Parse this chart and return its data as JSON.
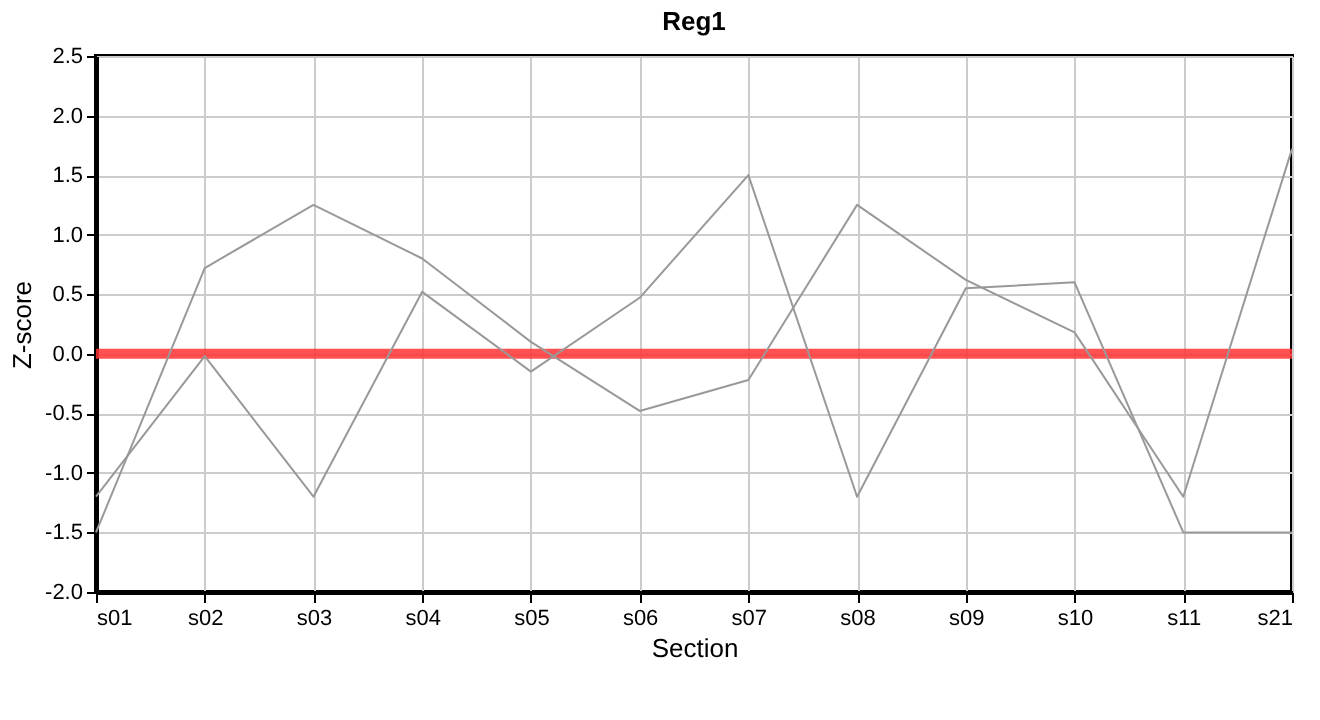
{
  "chart_data": {
    "type": "line",
    "title": "Reg1",
    "xlabel": "Section",
    "ylabel": "Z-score",
    "categories": [
      "s01",
      "s02",
      "s03",
      "s04",
      "s05",
      "s06",
      "s07",
      "s08",
      "s09",
      "s10",
      "s11",
      "s21"
    ],
    "series": [
      {
        "color": "#999999",
        "values": [
          -1.5,
          0.72,
          1.25,
          0.8,
          0.1,
          -0.48,
          -0.22,
          1.25,
          0.62,
          0.18,
          -1.2,
          1.72
        ]
      },
      {
        "color": "#999999",
        "values": [
          -1.2,
          -0.02,
          -1.2,
          0.52,
          -0.15,
          0.47,
          1.5,
          -1.2,
          0.55,
          0.6,
          -1.5,
          -1.5
        ]
      }
    ],
    "ylim": [
      -2,
      2.5
    ],
    "yticks": [
      {
        "value": -2,
        "label": "-2.0"
      },
      {
        "value": -1.5,
        "label": "-1.5"
      },
      {
        "value": -1,
        "label": "-1.0"
      },
      {
        "value": -0.5,
        "label": "-0.5"
      },
      {
        "value": 0,
        "label": "0.0"
      },
      {
        "value": 0.5,
        "label": "0.5"
      },
      {
        "value": 1,
        "label": "1.0"
      },
      {
        "value": 1.5,
        "label": "1.5"
      },
      {
        "value": 2,
        "label": "2.0"
      },
      {
        "value": 2.5,
        "label": "2.5"
      }
    ],
    "ref_lines": [
      {
        "axis": "y",
        "value": 0,
        "color": "#ff3333"
      }
    ],
    "grid": true,
    "marker": "none",
    "line_style": "solid"
  }
}
